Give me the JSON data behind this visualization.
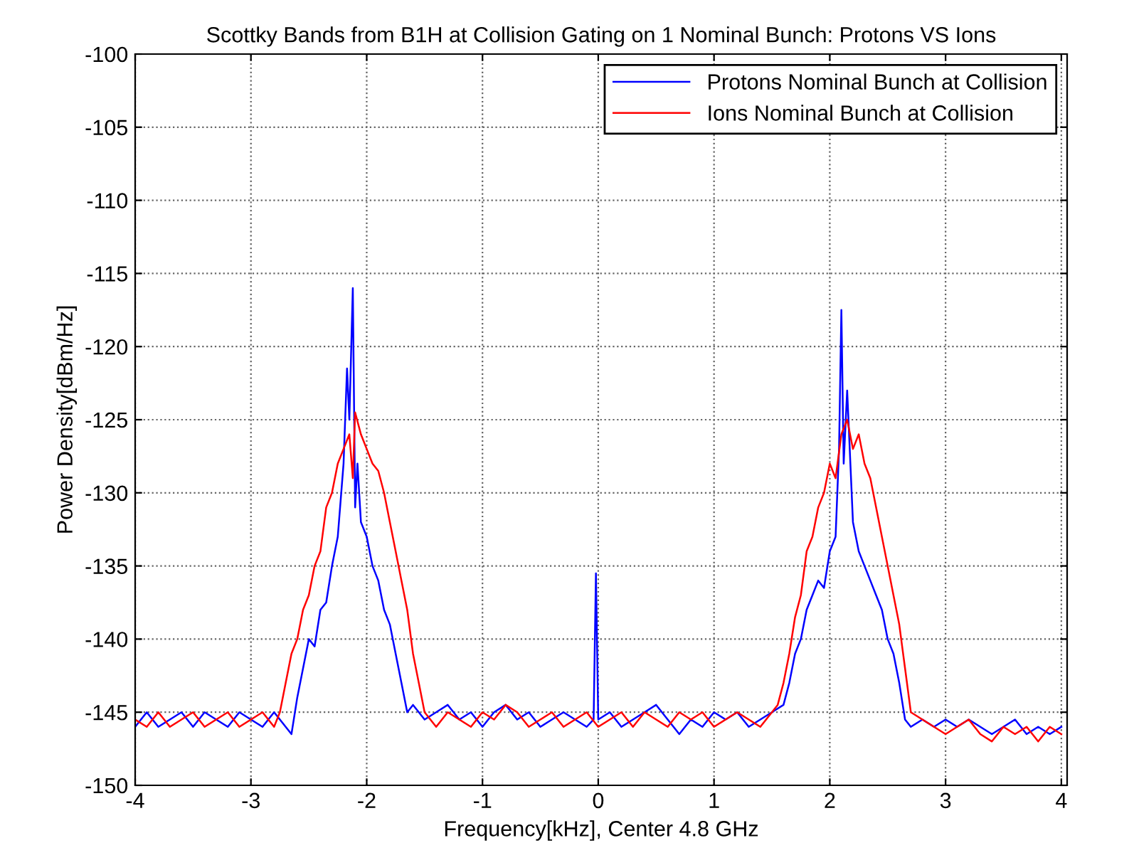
{
  "chart_data": {
    "type": "line",
    "title": "Scottky Bands from B1H at Collision Gating on 1 Nominal Bunch: Protons VS Ions",
    "xlabel": "Frequency[kHz], Center 4.8 GHz",
    "ylabel": "Power Density[dBm/Hz]",
    "xlim": [
      -4,
      4.05
    ],
    "ylim": [
      -150,
      -100
    ],
    "xticks": [
      -4,
      -3,
      -2,
      -1,
      0,
      1,
      2,
      3,
      4
    ],
    "yticks": [
      -150,
      -145,
      -140,
      -135,
      -130,
      -125,
      -120,
      -115,
      -110,
      -105,
      -100
    ],
    "grid": true,
    "legend": "top right",
    "marker": "none",
    "line_style": "solid",
    "series": [
      {
        "name": "Protons Nominal Bunch at Collision",
        "color": "#0000ff",
        "x": [
          -4,
          -3.9,
          -3.8,
          -3.7,
          -3.6,
          -3.5,
          -3.4,
          -3.3,
          -3.2,
          -3.1,
          -3.0,
          -2.9,
          -2.8,
          -2.7,
          -2.65,
          -2.6,
          -2.5,
          -2.45,
          -2.4,
          -2.35,
          -2.3,
          -2.25,
          -2.2,
          -2.17,
          -2.15,
          -2.12,
          -2.1,
          -2.08,
          -2.05,
          -2.0,
          -1.95,
          -1.9,
          -1.85,
          -1.8,
          -1.75,
          -1.7,
          -1.65,
          -1.6,
          -1.5,
          -1.4,
          -1.3,
          -1.2,
          -1.1,
          -1.0,
          -0.9,
          -0.8,
          -0.7,
          -0.6,
          -0.5,
          -0.4,
          -0.3,
          -0.2,
          -0.1,
          -0.04,
          -0.02,
          0.0,
          0.1,
          0.2,
          0.3,
          0.4,
          0.5,
          0.6,
          0.7,
          0.8,
          0.9,
          1.0,
          1.1,
          1.2,
          1.3,
          1.4,
          1.5,
          1.6,
          1.65,
          1.7,
          1.75,
          1.8,
          1.85,
          1.9,
          1.95,
          2.0,
          2.05,
          2.08,
          2.1,
          2.12,
          2.15,
          2.2,
          2.25,
          2.3,
          2.35,
          2.4,
          2.45,
          2.5,
          2.55,
          2.6,
          2.65,
          2.7,
          2.8,
          2.9,
          3.0,
          3.1,
          3.2,
          3.3,
          3.4,
          3.5,
          3.6,
          3.7,
          3.8,
          3.9,
          4.0
        ],
        "values": [
          -146,
          -145,
          -146,
          -145.5,
          -145,
          -146,
          -145,
          -145.5,
          -146,
          -145,
          -145.5,
          -146,
          -145,
          -146,
          -146.5,
          -144,
          -140,
          -140.5,
          -138,
          -137.5,
          -135,
          -133,
          -128,
          -121.5,
          -125,
          -116,
          -131,
          -128,
          -132,
          -133,
          -135,
          -136,
          -138,
          -139,
          -141,
          -143,
          -145,
          -144.5,
          -145.5,
          -145,
          -144.5,
          -145.5,
          -145,
          -146,
          -145,
          -144.5,
          -145.5,
          -145,
          -146,
          -145.5,
          -145,
          -145.5,
          -146,
          -145.5,
          -135.5,
          -145.5,
          -145,
          -146,
          -145.5,
          -145,
          -144.5,
          -145.5,
          -146.5,
          -145.5,
          -146,
          -145,
          -145.5,
          -145,
          -146,
          -145.5,
          -145,
          -144.5,
          -143,
          -141,
          -140,
          -138,
          -137,
          -136,
          -136.5,
          -134,
          -133,
          -127,
          -117.5,
          -128,
          -123,
          -132,
          -134,
          -135,
          -136,
          -137,
          -138,
          -140,
          -141,
          -143,
          -145.5,
          -146,
          -145.5,
          -146,
          -145.5,
          -146,
          -145.5,
          -146,
          -146.5,
          -146,
          -145.5,
          -146.5,
          -146,
          -146.5,
          -146
        ]
      },
      {
        "name": "Ions Nominal Bunch at Collision",
        "color": "#ff0000",
        "x": [
          -4,
          -3.9,
          -3.8,
          -3.7,
          -3.6,
          -3.5,
          -3.4,
          -3.3,
          -3.2,
          -3.1,
          -3.0,
          -2.9,
          -2.8,
          -2.75,
          -2.7,
          -2.65,
          -2.6,
          -2.55,
          -2.5,
          -2.45,
          -2.4,
          -2.35,
          -2.3,
          -2.25,
          -2.2,
          -2.15,
          -2.12,
          -2.1,
          -2.05,
          -2.0,
          -1.95,
          -1.9,
          -1.85,
          -1.8,
          -1.75,
          -1.7,
          -1.65,
          -1.6,
          -1.55,
          -1.5,
          -1.4,
          -1.3,
          -1.2,
          -1.1,
          -1.0,
          -0.9,
          -0.8,
          -0.7,
          -0.6,
          -0.5,
          -0.4,
          -0.3,
          -0.2,
          -0.1,
          0.0,
          0.1,
          0.2,
          0.3,
          0.4,
          0.5,
          0.6,
          0.7,
          0.8,
          0.9,
          1.0,
          1.1,
          1.2,
          1.3,
          1.4,
          1.5,
          1.55,
          1.6,
          1.65,
          1.7,
          1.75,
          1.8,
          1.85,
          1.9,
          1.95,
          2.0,
          2.05,
          2.1,
          2.15,
          2.2,
          2.25,
          2.3,
          2.35,
          2.4,
          2.45,
          2.5,
          2.55,
          2.6,
          2.65,
          2.7,
          2.8,
          2.9,
          3.0,
          3.1,
          3.2,
          3.3,
          3.4,
          3.5,
          3.6,
          3.7,
          3.8,
          3.9,
          4.0
        ],
        "values": [
          -145.5,
          -146,
          -145,
          -146,
          -145.5,
          -145,
          -146,
          -145.5,
          -145,
          -146,
          -145.5,
          -145,
          -146,
          -145,
          -143,
          -141,
          -140,
          -138,
          -137,
          -135,
          -134,
          -131,
          -130,
          -128,
          -127,
          -126,
          -129,
          -124.5,
          -126,
          -127,
          -128,
          -128.5,
          -130,
          -132,
          -134,
          -136,
          -138,
          -141,
          -143,
          -145,
          -146,
          -145,
          -145.5,
          -146,
          -145,
          -145.5,
          -144.5,
          -145,
          -146,
          -145.5,
          -145,
          -146,
          -145.5,
          -145,
          -146,
          -145.5,
          -145,
          -146,
          -145,
          -145.5,
          -146,
          -145,
          -145.5,
          -145,
          -146,
          -145.5,
          -145,
          -145.5,
          -146,
          -145,
          -144.5,
          -143,
          -141,
          -138.5,
          -137,
          -134,
          -133,
          -131,
          -130,
          -128,
          -129,
          -126,
          -125,
          -127,
          -126,
          -128,
          -129,
          -131,
          -133,
          -135,
          -137,
          -139,
          -142,
          -145,
          -145.5,
          -146,
          -146.5,
          -146,
          -145.5,
          -146.5,
          -147,
          -146,
          -146.5,
          -146,
          -147,
          -146,
          -146.5
        ]
      }
    ]
  }
}
